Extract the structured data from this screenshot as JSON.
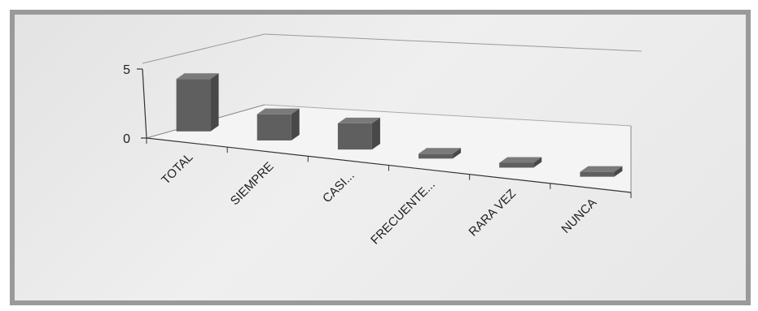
{
  "chart_data": {
    "type": "bar",
    "title": "",
    "categories": [
      "TOTAL",
      "SIEMPRE",
      "CASI...",
      "FRECUENTE...",
      "RARA VEZ",
      "NUNCA"
    ],
    "values": [
      4,
      2,
      2,
      0,
      0,
      0
    ],
    "yticks": [
      "5",
      "0"
    ],
    "ylim": [
      0,
      5
    ],
    "xlabel": "",
    "ylabel": "",
    "grid": false,
    "legend": "none",
    "style": "3d-column"
  },
  "colors": {
    "frame_border": "#9a9a9a",
    "background": "#ebebeb",
    "bar_front": "#5f5f5f",
    "bar_side": "#484848",
    "bar_top": "#7a7a7a",
    "axis": "#333333"
  }
}
